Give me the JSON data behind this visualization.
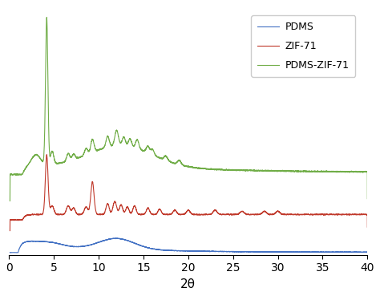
{
  "title": "",
  "xlabel": "2θ",
  "ylabel": "",
  "xlim": [
    0,
    40
  ],
  "xticks": [
    0,
    5,
    10,
    15,
    20,
    25,
    30,
    35,
    40
  ],
  "colors": {
    "PDMS": "#4472c4",
    "ZIF-71": "#c0392b",
    "PDMS-ZIF-71": "#70ad47"
  },
  "legend_labels": [
    "PDMS",
    "ZIF-71",
    "PDMS-ZIF-71"
  ],
  "background_color": "#ffffff",
  "line_width": 0.8
}
